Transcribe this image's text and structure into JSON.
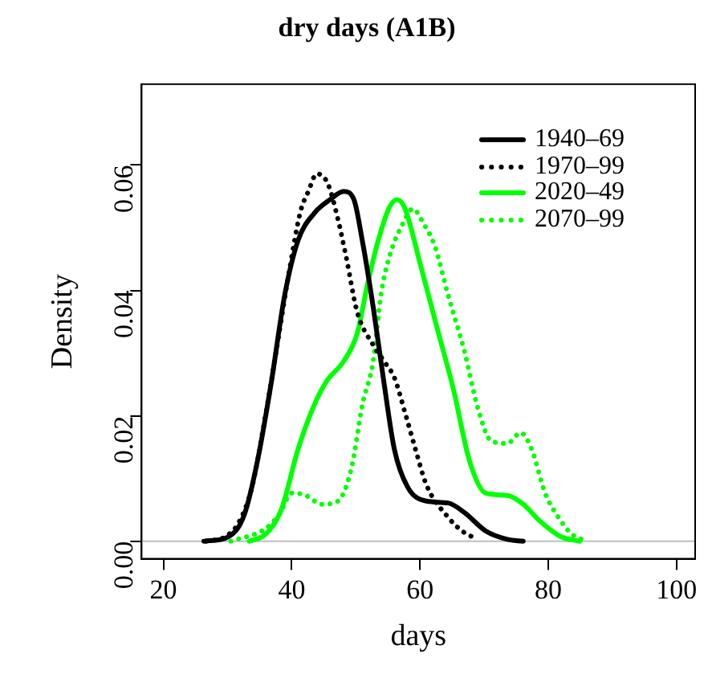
{
  "chart_data": {
    "type": "line",
    "title": "dry days (A1B)",
    "xlabel": "days",
    "ylabel": "Density",
    "xlim": [
      16.6,
      102.9
    ],
    "xticks": [
      20,
      40,
      60,
      80,
      100
    ],
    "ylim": [
      -0.0028,
      0.0729
    ],
    "yticks": [
      {
        "value": 0,
        "label": "0.00"
      },
      {
        "value": 0.02,
        "label": "0.02"
      },
      {
        "value": 0.04,
        "label": "0.04"
      },
      {
        "value": 0.06,
        "label": "0.06"
      }
    ],
    "grid": false,
    "legend": "top right",
    "ref_lines": [
      {
        "axis": "y",
        "value": 0,
        "color": "#bebebe"
      }
    ],
    "series": [
      {
        "name": "1940–69",
        "color": "#000000",
        "line_style": "solid",
        "x": [
          26.3,
          30.1,
          32.6,
          34.7,
          36.8,
          38.9,
          41.0,
          43.5,
          46.0,
          48.1,
          49.7,
          51.0,
          52.7,
          54.4,
          56.0,
          58.1,
          61.0,
          64.4,
          66.9,
          70.3,
          73.6,
          76.1
        ],
        "values": [
          0,
          0.0007,
          0.0042,
          0.013,
          0.0252,
          0.0392,
          0.048,
          0.0523,
          0.0545,
          0.0558,
          0.0545,
          0.048,
          0.0374,
          0.0252,
          0.0147,
          0.0086,
          0.0064,
          0.0061,
          0.0046,
          0.0016,
          0.0003,
          0
        ]
      },
      {
        "name": "1970–99",
        "color": "#000000",
        "line_style": "dotted",
        "x": [
          26.7,
          29.6,
          31.7,
          33.8,
          35.9,
          37.6,
          39.7,
          41.4,
          42.6,
          43.9,
          45.6,
          47.2,
          48.5,
          50.2,
          52.7,
          54.4,
          56.0,
          57.7,
          59.4,
          61.0,
          64.4,
          66.6,
          69.0
        ],
        "values": [
          0,
          0.0007,
          0.0029,
          0.0086,
          0.02,
          0.0304,
          0.0436,
          0.0527,
          0.0558,
          0.0586,
          0.0571,
          0.0514,
          0.0453,
          0.0366,
          0.0313,
          0.0287,
          0.0261,
          0.0204,
          0.0143,
          0.009,
          0.0038,
          0.0016,
          0.0003
        ]
      },
      {
        "name": "2020–49",
        "color": "#00ff00",
        "line_style": "solid",
        "x": [
          33.4,
          35.9,
          38.4,
          41.0,
          43.5,
          45.5,
          48.1,
          50.2,
          51.8,
          53.5,
          55.2,
          56.4,
          57.6,
          60.2,
          62.7,
          65.2,
          67.7,
          70.2,
          73.6,
          76.1,
          78.6,
          82.0,
          84.9
        ],
        "values": [
          0,
          0.0011,
          0.0051,
          0.0147,
          0.0217,
          0.0256,
          0.0287,
          0.0331,
          0.0409,
          0.048,
          0.0532,
          0.0545,
          0.0532,
          0.0436,
          0.0339,
          0.0243,
          0.0129,
          0.0077,
          0.0073,
          0.0059,
          0.0033,
          0.0007,
          0
        ]
      },
      {
        "name": "2070–99",
        "color": "#00ff00",
        "line_style": "dotted",
        "x": [
          30.5,
          35.9,
          38.0,
          40.1,
          42.2,
          44.7,
          47.2,
          49.3,
          51.0,
          52.7,
          53.9,
          55.2,
          57.3,
          58.9,
          60.6,
          62.3,
          64.4,
          66.9,
          69.0,
          71.1,
          73.6,
          75.7,
          77.4,
          79.5,
          81.6,
          83.7,
          86.2
        ],
        "values": [
          0,
          0.002,
          0.0042,
          0.0077,
          0.0073,
          0.0059,
          0.0064,
          0.0116,
          0.0217,
          0.0287,
          0.0392,
          0.0453,
          0.0506,
          0.053,
          0.0506,
          0.0471,
          0.0392,
          0.0304,
          0.0213,
          0.016,
          0.0156,
          0.0173,
          0.0147,
          0.0077,
          0.0038,
          0.0011,
          0
        ]
      }
    ]
  }
}
